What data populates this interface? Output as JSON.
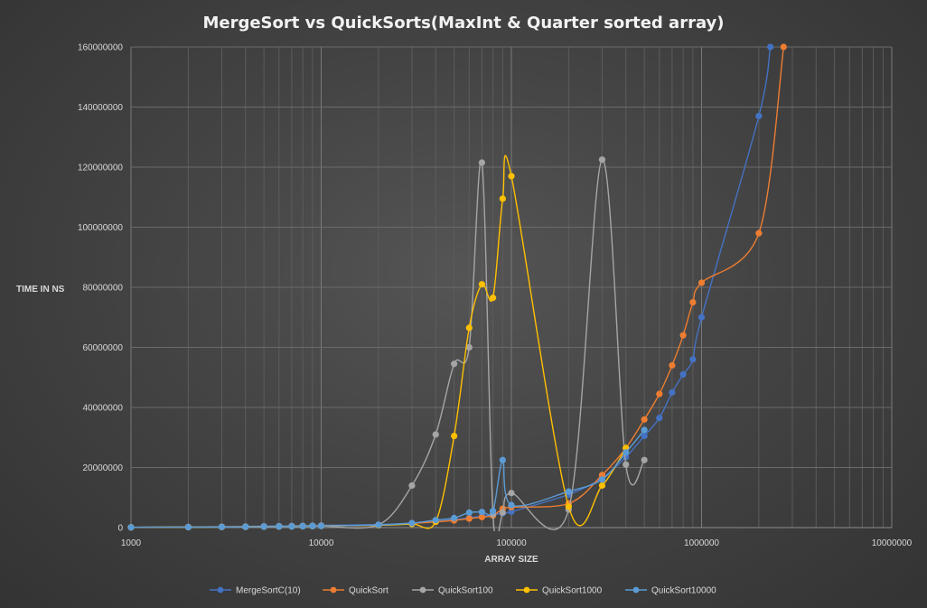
{
  "chart_data": {
    "type": "scatter",
    "title": "MergeSort  vs QuickSorts(MaxInt  & Quarter  sorted  array)",
    "xlabel": "ARRAY SIZE",
    "ylabel": "TIME IN NS",
    "x_scale": "log",
    "xlim": [
      1000,
      10000000
    ],
    "ylim": [
      0,
      160000000
    ],
    "grid": true,
    "legend_position": "bottom",
    "x_tick_labels": [
      "1000",
      "10000",
      "100000",
      "1000000",
      "10000000"
    ],
    "y_tick_labels": [
      "0",
      "20000000",
      "40000000",
      "60000000",
      "80000000",
      "100000000",
      "120000000",
      "140000000",
      "160000000"
    ],
    "series": [
      {
        "name": "MergeSortC(10)",
        "color": "#4472C4",
        "points": [
          [
            1000,
            100000
          ],
          [
            2000,
            200000
          ],
          [
            3000,
            300000
          ],
          [
            4000,
            400000
          ],
          [
            5000,
            500000
          ],
          [
            6000,
            550000
          ],
          [
            7000,
            600000
          ],
          [
            8000,
            650000
          ],
          [
            9000,
            700000
          ],
          [
            10000,
            750000
          ],
          [
            20000,
            1000000
          ],
          [
            30000,
            1500000
          ],
          [
            40000,
            2000000
          ],
          [
            50000,
            2600000
          ],
          [
            60000,
            3300000
          ],
          [
            70000,
            3800000
          ],
          [
            80000,
            4300000
          ],
          [
            90000,
            4800000
          ],
          [
            100000,
            5300000
          ],
          [
            200000,
            11000000
          ],
          [
            300000,
            16500000
          ],
          [
            400000,
            23500000
          ],
          [
            500000,
            30500000
          ],
          [
            600000,
            36500000
          ],
          [
            700000,
            45000000
          ],
          [
            800000,
            51000000
          ],
          [
            900000,
            56000000
          ],
          [
            1000000,
            70000000
          ],
          [
            2000000,
            137000000
          ],
          [
            2300000,
            160000000
          ]
        ]
      },
      {
        "name": "QuickSort",
        "color": "#ED7D31",
        "points": [
          [
            1000,
            100000
          ],
          [
            2000,
            200000
          ],
          [
            3000,
            250000
          ],
          [
            4000,
            300000
          ],
          [
            5000,
            350000
          ],
          [
            6000,
            400000
          ],
          [
            7000,
            450000
          ],
          [
            8000,
            500000
          ],
          [
            9000,
            550000
          ],
          [
            10000,
            600000
          ],
          [
            20000,
            800000
          ],
          [
            30000,
            1400000
          ],
          [
            40000,
            1900000
          ],
          [
            50000,
            2400000
          ],
          [
            60000,
            3000000
          ],
          [
            70000,
            3500000
          ],
          [
            80000,
            4000000
          ],
          [
            90000,
            6300000
          ],
          [
            100000,
            6800000
          ],
          [
            200000,
            8000000
          ],
          [
            300000,
            17500000
          ],
          [
            400000,
            26500000
          ],
          [
            500000,
            36000000
          ],
          [
            600000,
            44500000
          ],
          [
            700000,
            54000000
          ],
          [
            800000,
            64000000
          ],
          [
            900000,
            75000000
          ],
          [
            1000000,
            81500000
          ],
          [
            2000000,
            98000000
          ],
          [
            2700000,
            160000000
          ]
        ]
      },
      {
        "name": "QuickSort100",
        "color": "#A5A5A5",
        "points": [
          [
            1000,
            100000
          ],
          [
            2000,
            150000
          ],
          [
            3000,
            200000
          ],
          [
            4000,
            250000
          ],
          [
            5000,
            300000
          ],
          [
            6000,
            350000
          ],
          [
            7000,
            400000
          ],
          [
            8000,
            450000
          ],
          [
            9000,
            500000
          ],
          [
            10000,
            550000
          ],
          [
            20000,
            900000
          ],
          [
            30000,
            14000000
          ],
          [
            40000,
            31000000
          ],
          [
            50000,
            54500000
          ],
          [
            60000,
            60000000
          ],
          [
            70000,
            121500000
          ],
          [
            80000,
            4500000
          ],
          [
            90000,
            5000000
          ],
          [
            100000,
            11500000
          ],
          [
            200000,
            6000000
          ],
          [
            300000,
            122500000
          ],
          [
            400000,
            21000000
          ],
          [
            500000,
            22500000
          ]
        ]
      },
      {
        "name": "QuickSort1000",
        "color": "#FFC000",
        "points": [
          [
            1000,
            100000
          ],
          [
            2000,
            150000
          ],
          [
            3000,
            200000
          ],
          [
            4000,
            250000
          ],
          [
            5000,
            300000
          ],
          [
            6000,
            350000
          ],
          [
            7000,
            400000
          ],
          [
            8000,
            450000
          ],
          [
            9000,
            500000
          ],
          [
            10000,
            550000
          ],
          [
            20000,
            800000
          ],
          [
            30000,
            1200000
          ],
          [
            40000,
            2000000
          ],
          [
            50000,
            30500000
          ],
          [
            60000,
            66500000
          ],
          [
            70000,
            81000000
          ],
          [
            80000,
            76500000
          ],
          [
            90000,
            109500000
          ],
          [
            100000,
            117000000
          ],
          [
            200000,
            7000000
          ],
          [
            300000,
            14000000
          ],
          [
            400000,
            26500000
          ]
        ]
      },
      {
        "name": "QuickSort10000",
        "color": "#5B9BD5",
        "points": [
          [
            1000,
            100000
          ],
          [
            2000,
            150000
          ],
          [
            3000,
            200000
          ],
          [
            4000,
            250000
          ],
          [
            5000,
            300000
          ],
          [
            6000,
            350000
          ],
          [
            7000,
            400000
          ],
          [
            8000,
            450000
          ],
          [
            9000,
            500000
          ],
          [
            10000,
            550000
          ],
          [
            20000,
            900000
          ],
          [
            30000,
            1500000
          ],
          [
            40000,
            2500000
          ],
          [
            50000,
            3200000
          ],
          [
            60000,
            5000000
          ],
          [
            70000,
            5200000
          ],
          [
            80000,
            5500000
          ],
          [
            90000,
            22500000
          ],
          [
            100000,
            7500000
          ],
          [
            200000,
            12000000
          ],
          [
            300000,
            16000000
          ],
          [
            400000,
            25000000
          ],
          [
            500000,
            32500000
          ]
        ]
      }
    ]
  }
}
